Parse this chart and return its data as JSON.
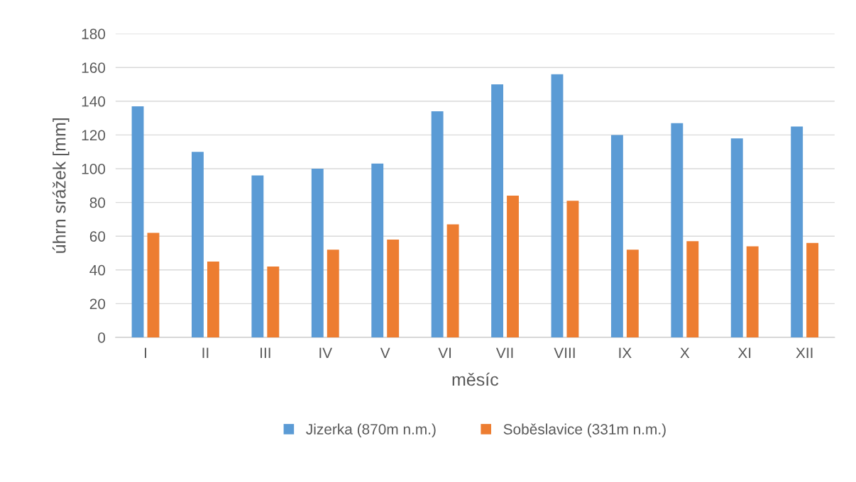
{
  "chart_data": {
    "type": "bar",
    "xlabel": "měsíc",
    "ylabel": "úhrn srážek [mm]",
    "categories": [
      "I",
      "II",
      "III",
      "IV",
      "V",
      "VI",
      "VII",
      "VIII",
      "IX",
      "X",
      "XI",
      "XII"
    ],
    "series": [
      {
        "name": "Jizerka (870m n.m.)",
        "color": "#5b9bd5",
        "values": [
          137,
          110,
          96,
          100,
          103,
          134,
          150,
          156,
          120,
          127,
          118,
          125
        ]
      },
      {
        "name": "Soběslavice (331m n.m.)",
        "color": "#ed7d31",
        "values": [
          62,
          45,
          42,
          52,
          58,
          67,
          84,
          81,
          52,
          57,
          54,
          56
        ]
      }
    ],
    "ylim": [
      0,
      180
    ],
    "yticks": [
      0,
      20,
      40,
      60,
      80,
      100,
      120,
      140,
      160,
      180
    ],
    "grid": "y",
    "legend": "bottom"
  }
}
